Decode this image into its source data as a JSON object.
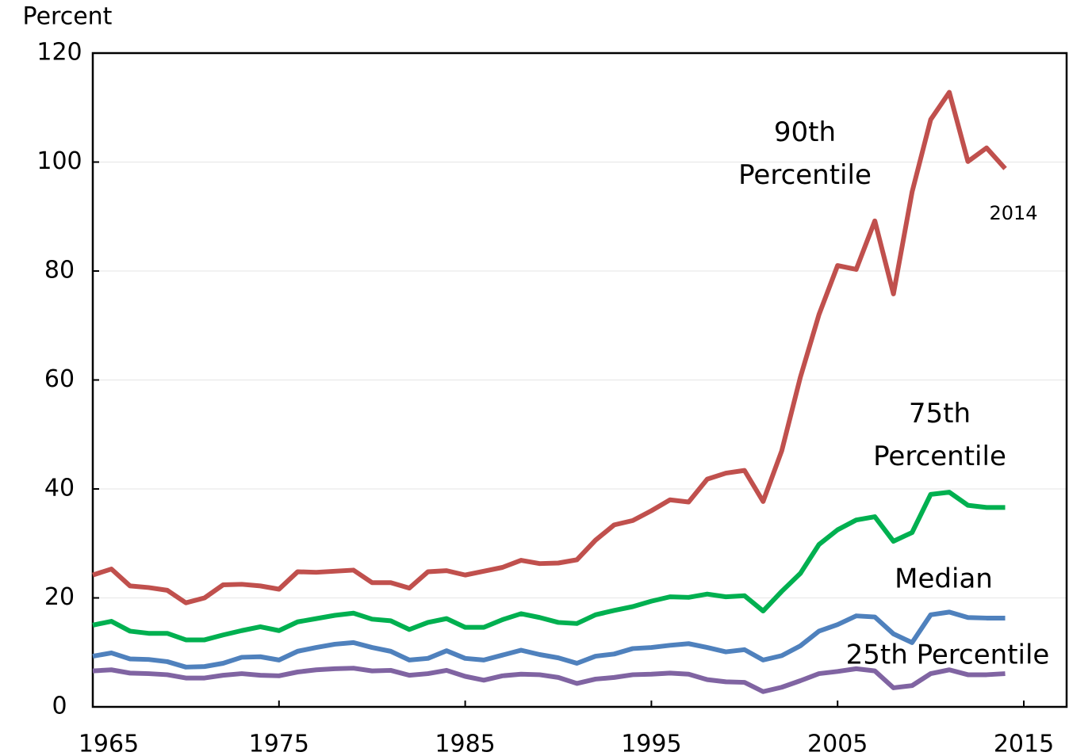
{
  "chart_data": {
    "type": "line",
    "y_label": "Percent",
    "annotations": [
      "2014"
    ],
    "x": [
      1965,
      1966,
      1967,
      1968,
      1969,
      1970,
      1971,
      1972,
      1973,
      1974,
      1975,
      1976,
      1977,
      1978,
      1979,
      1980,
      1981,
      1982,
      1983,
      1984,
      1985,
      1986,
      1987,
      1988,
      1989,
      1990,
      1991,
      1992,
      1993,
      1994,
      1995,
      1996,
      1997,
      1998,
      1999,
      2000,
      2001,
      2002,
      2003,
      2004,
      2005,
      2006,
      2007,
      2008,
      2009,
      2010,
      2011,
      2012,
      2013,
      2014
    ],
    "series": [
      {
        "name": "90th Percentile",
        "color": "#c0504d",
        "values": [
          24.2,
          25.3,
          22.2,
          21.9,
          21.4,
          19.1,
          20.0,
          22.4,
          22.5,
          22.2,
          21.6,
          24.8,
          24.7,
          24.9,
          25.1,
          22.8,
          22.8,
          21.8,
          24.8,
          25.0,
          24.2,
          24.9,
          25.6,
          26.9,
          26.3,
          26.4,
          27.0,
          30.6,
          33.4,
          34.2,
          36.0,
          38.0,
          37.6,
          41.8,
          42.9,
          43.4,
          37.7,
          47.0,
          60.5,
          72.0,
          81.0,
          80.3,
          89.2,
          75.8,
          94.5,
          107.8,
          112.8,
          100.1,
          102.6,
          98.8
        ]
      },
      {
        "name": "75th Percentile",
        "color": "#00b050",
        "values": [
          15.0,
          15.7,
          13.9,
          13.5,
          13.5,
          12.3,
          12.3,
          13.2,
          14.0,
          14.7,
          14.0,
          15.6,
          16.2,
          16.8,
          17.2,
          16.1,
          15.8,
          14.2,
          15.5,
          16.2,
          14.6,
          14.6,
          16.0,
          17.1,
          16.4,
          15.5,
          15.3,
          16.9,
          17.7,
          18.4,
          19.4,
          20.2,
          20.1,
          20.7,
          20.2,
          20.4,
          17.6,
          21.2,
          24.5,
          29.8,
          32.5,
          34.3,
          34.9,
          30.4,
          32.0,
          39.0,
          39.4,
          37.0,
          36.6,
          36.6
        ]
      },
      {
        "name": "Median",
        "color": "#4f81bd",
        "values": [
          9.3,
          9.9,
          8.8,
          8.7,
          8.3,
          7.3,
          7.4,
          8.0,
          9.1,
          9.2,
          8.6,
          10.2,
          10.9,
          11.5,
          11.8,
          10.9,
          10.2,
          8.6,
          8.9,
          10.3,
          8.9,
          8.6,
          9.5,
          10.4,
          9.6,
          9.0,
          8.0,
          9.3,
          9.7,
          10.7,
          10.9,
          11.3,
          11.6,
          10.9,
          10.1,
          10.5,
          8.6,
          9.4,
          11.2,
          13.9,
          15.1,
          16.7,
          16.5,
          13.4,
          11.8,
          16.9,
          17.4,
          16.4,
          16.3,
          16.3
        ]
      },
      {
        "name": "25th Percentile",
        "color": "#8064a2",
        "values": [
          6.6,
          6.8,
          6.2,
          6.1,
          5.9,
          5.3,
          5.3,
          5.8,
          6.1,
          5.8,
          5.7,
          6.4,
          6.8,
          7.0,
          7.1,
          6.6,
          6.7,
          5.8,
          6.1,
          6.7,
          5.6,
          4.9,
          5.7,
          6.0,
          5.9,
          5.4,
          4.3,
          5.1,
          5.4,
          5.9,
          6.0,
          6.2,
          6.0,
          5.0,
          4.6,
          4.5,
          2.8,
          3.6,
          4.8,
          6.1,
          6.5,
          7.0,
          6.6,
          3.5,
          3.9,
          6.1,
          6.8,
          5.9,
          5.9,
          6.1
        ]
      }
    ],
    "xlim": [
      1965,
      2017.3
    ],
    "xticks": [
      1965,
      1975,
      1985,
      1995,
      2005,
      2015
    ],
    "ylim": [
      0,
      120
    ],
    "yticks": [
      0,
      20,
      40,
      60,
      80,
      100,
      120
    ],
    "grid": true
  }
}
